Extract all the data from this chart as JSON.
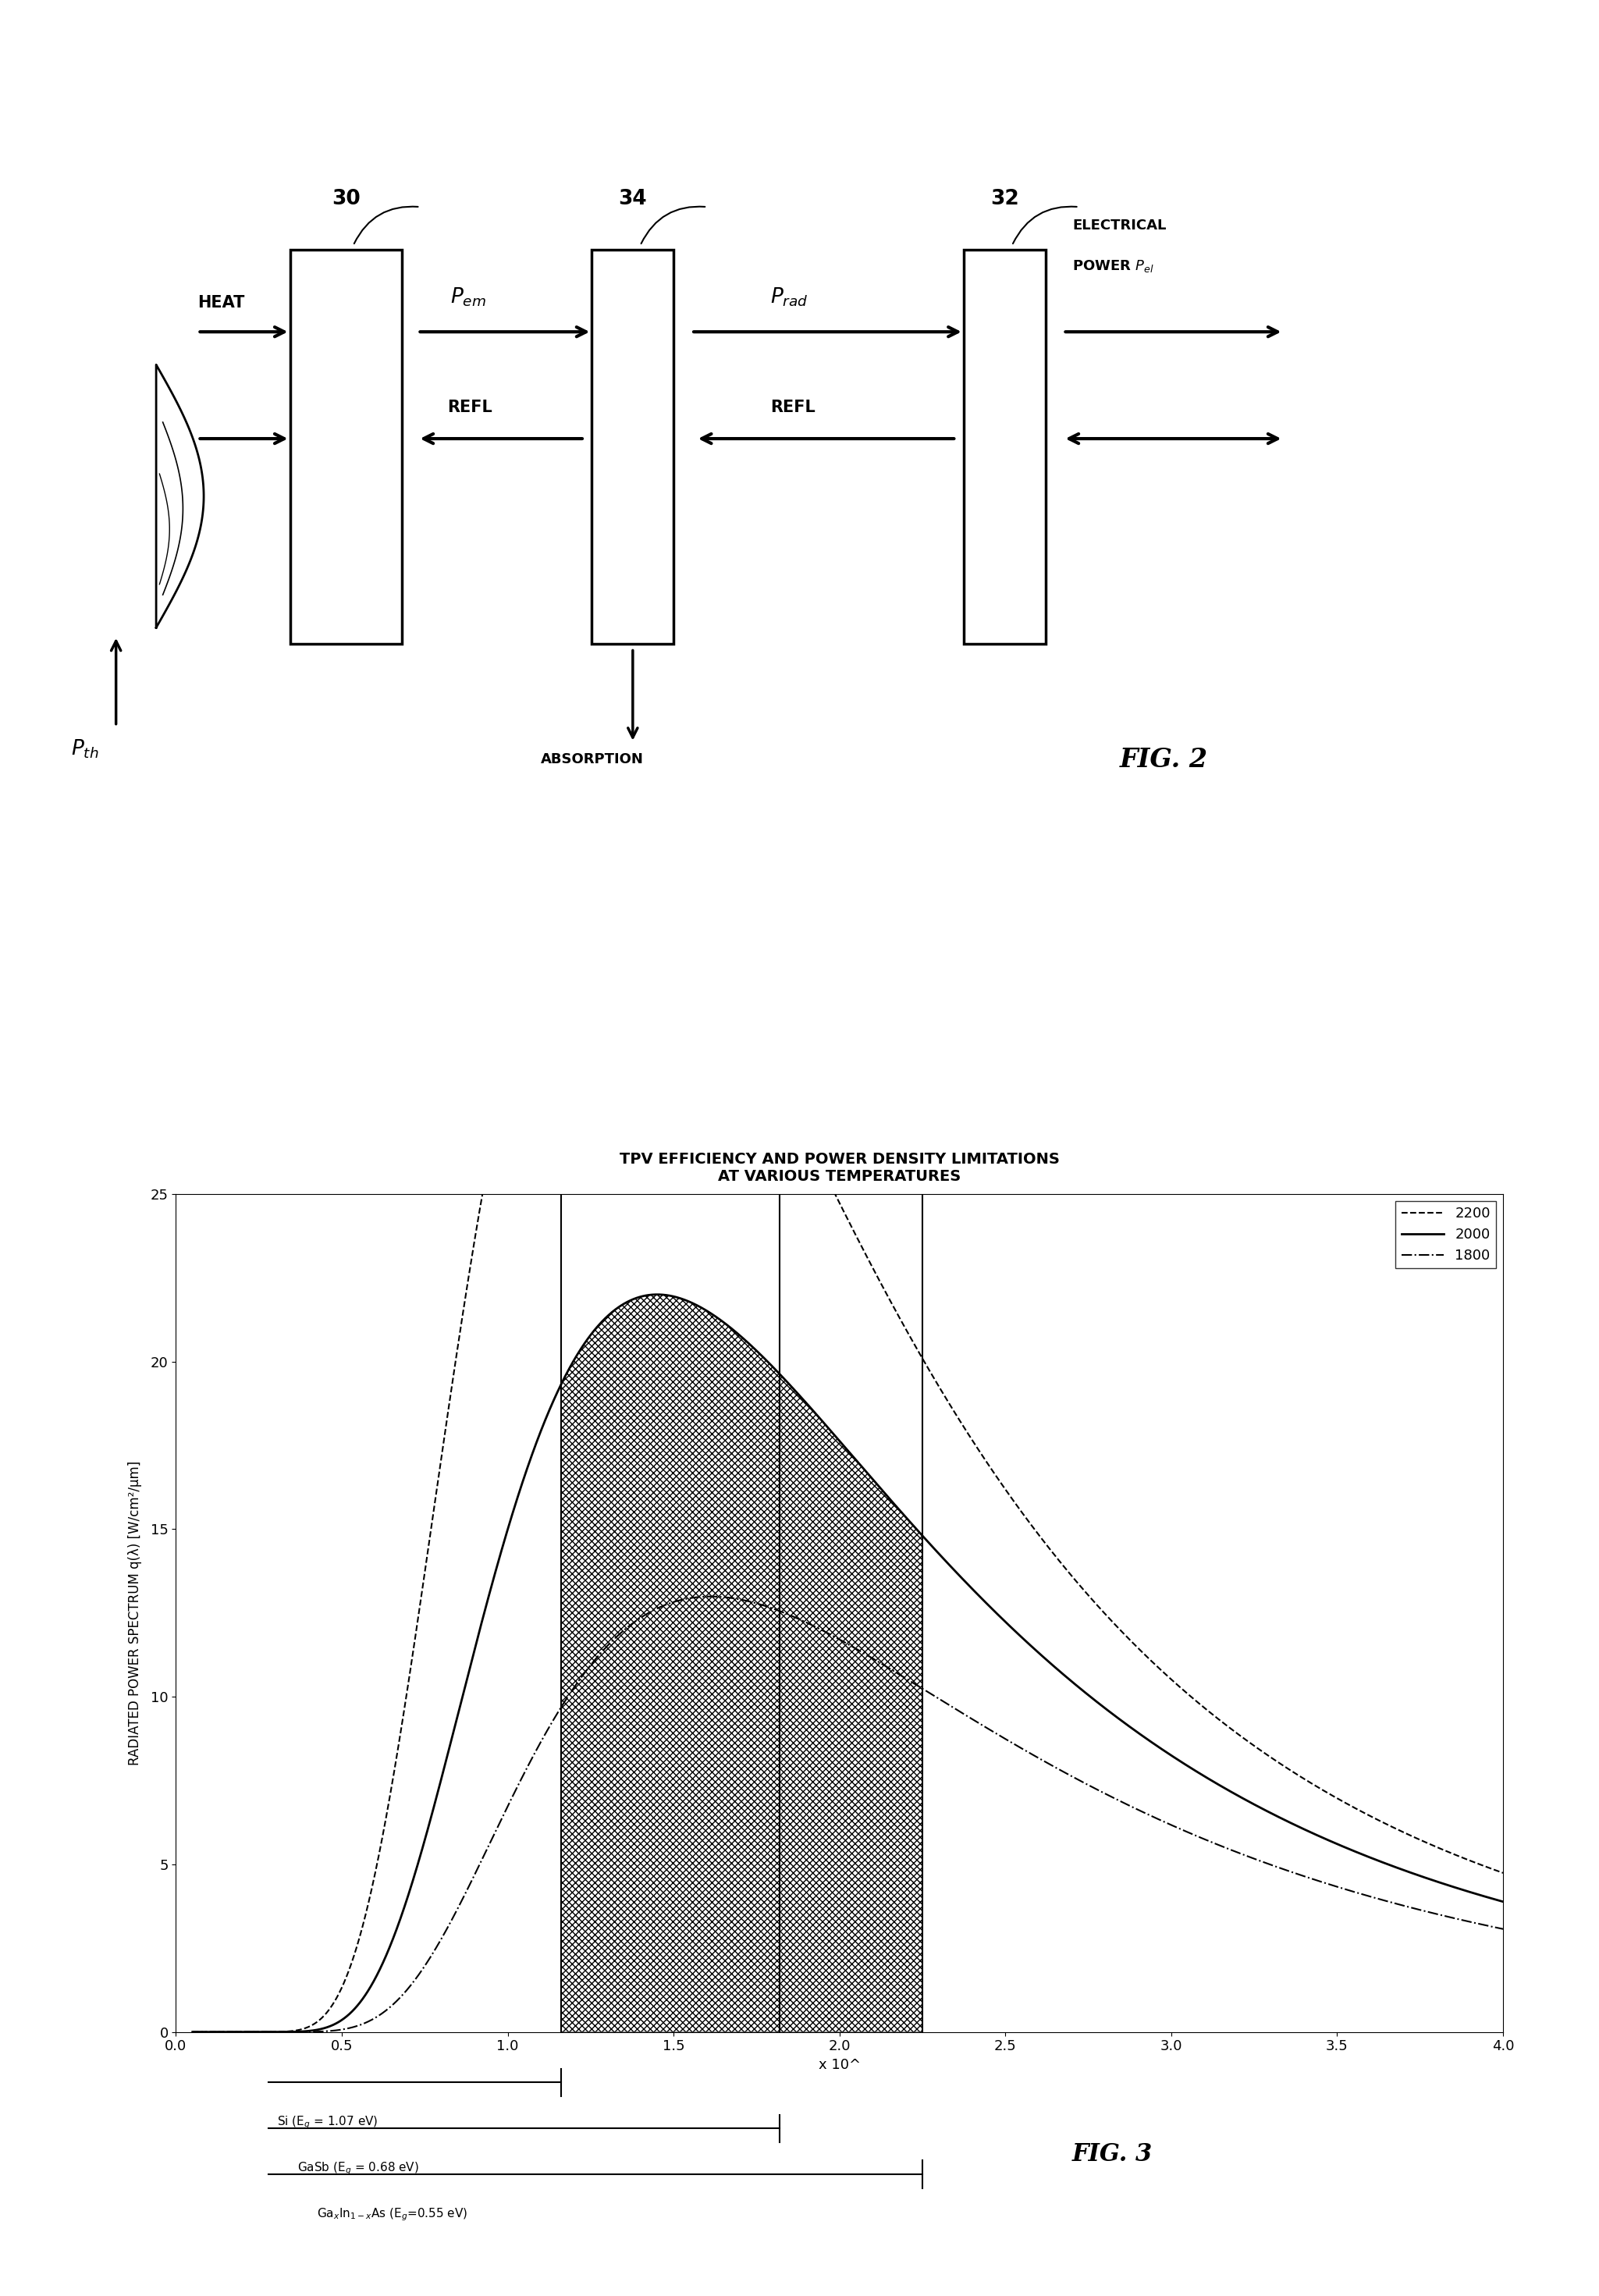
{
  "fig_width": 20.49,
  "fig_height": 29.42,
  "background_color": "#ffffff",
  "plot_title_line1": "TPV EFFICIENCY AND POWER DENSITY LIMITATIONS",
  "plot_title_line2": "AT VARIOUS TEMPERATURES",
  "ylabel": "RADIATED POWER SPECTRUM q(λ) [W/cm²/μm]",
  "xlabel_note": "x 10^",
  "ylim": [
    0,
    25
  ],
  "xlim": [
    0,
    4
  ],
  "xticks": [
    0,
    0.5,
    1.0,
    1.5,
    2.0,
    2.5,
    3.0,
    3.5,
    4.0
  ],
  "yticks": [
    0,
    5,
    10,
    15,
    20,
    25
  ],
  "legend_labels": [
    "2200",
    "2000",
    "1800"
  ],
  "T_vals": [
    2200,
    2000,
    1800
  ],
  "lambda_Si": 1.16,
  "lambda_GaSb": 1.82,
  "lambda_GaxIn": 2.25,
  "fig2_label": "FIG. 2",
  "fig3_label": "FIG. 3"
}
